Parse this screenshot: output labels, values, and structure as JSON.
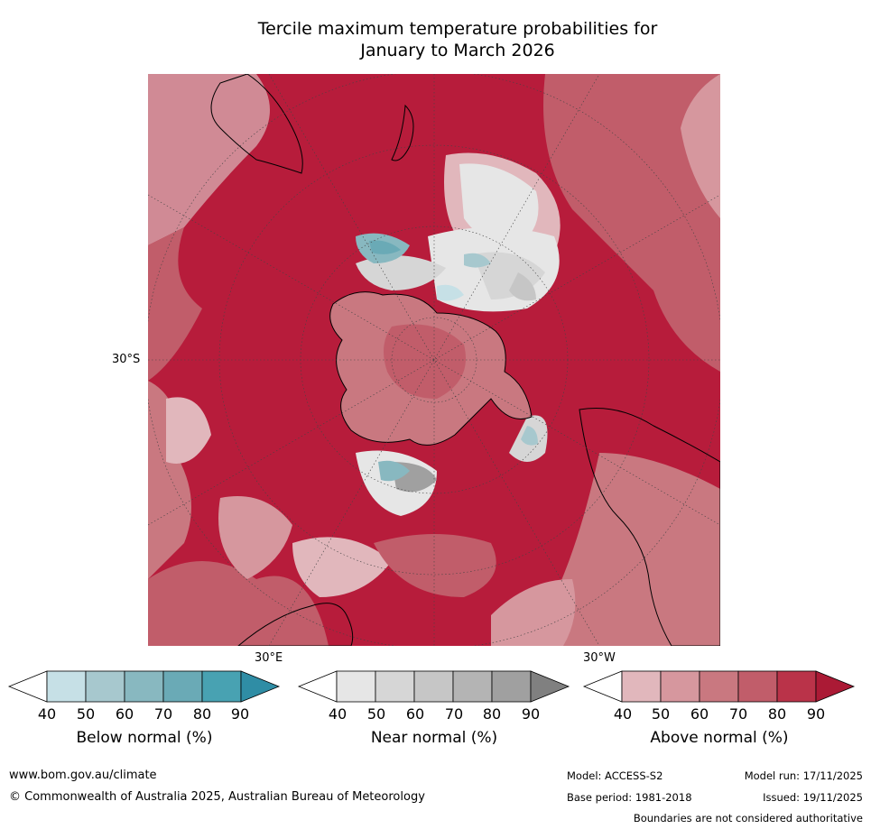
{
  "title": {
    "line1": "Tercile maximum temperature probabilities for",
    "line2": "January to March 2026"
  },
  "map": {
    "lat_label": "30°S",
    "lon_labels": {
      "east": "30°E",
      "west": "30°W"
    }
  },
  "colorbars": [
    {
      "label": "Below normal (%)",
      "ticks": [
        "40",
        "50",
        "60",
        "70",
        "80",
        "90"
      ],
      "colors": [
        "#ffffff",
        "#c6e0e6",
        "#a7c8ce",
        "#88b8c0",
        "#6aaab6",
        "#48a2b2",
        "#2f8da5"
      ]
    },
    {
      "label": "Near normal (%)",
      "ticks": [
        "40",
        "50",
        "60",
        "70",
        "80",
        "90"
      ],
      "colors": [
        "#ffffff",
        "#e6e6e6",
        "#d6d6d6",
        "#c6c6c6",
        "#b4b4b4",
        "#a0a0a0",
        "#808080"
      ]
    },
    {
      "label": "Above normal (%)",
      "ticks": [
        "40",
        "50",
        "60",
        "70",
        "80",
        "90"
      ],
      "colors": [
        "#ffffff",
        "#e1b7bc",
        "#d6979e",
        "#c97880",
        "#c15d6a",
        "#ba3349",
        "#ab1a35"
      ]
    }
  ],
  "footer": {
    "website": "www.bom.gov.au/climate",
    "copyright": "© Commonwealth of Australia 2025, Australian Bureau of Meteorology",
    "model": "Model: ACCESS-S2",
    "model_run": "Model run: 17/11/2025",
    "base_period": "Base period: 1981-2018",
    "issued": "Issued: 19/11/2025",
    "disclaimer": "Boundaries are not considered authoritative"
  }
}
